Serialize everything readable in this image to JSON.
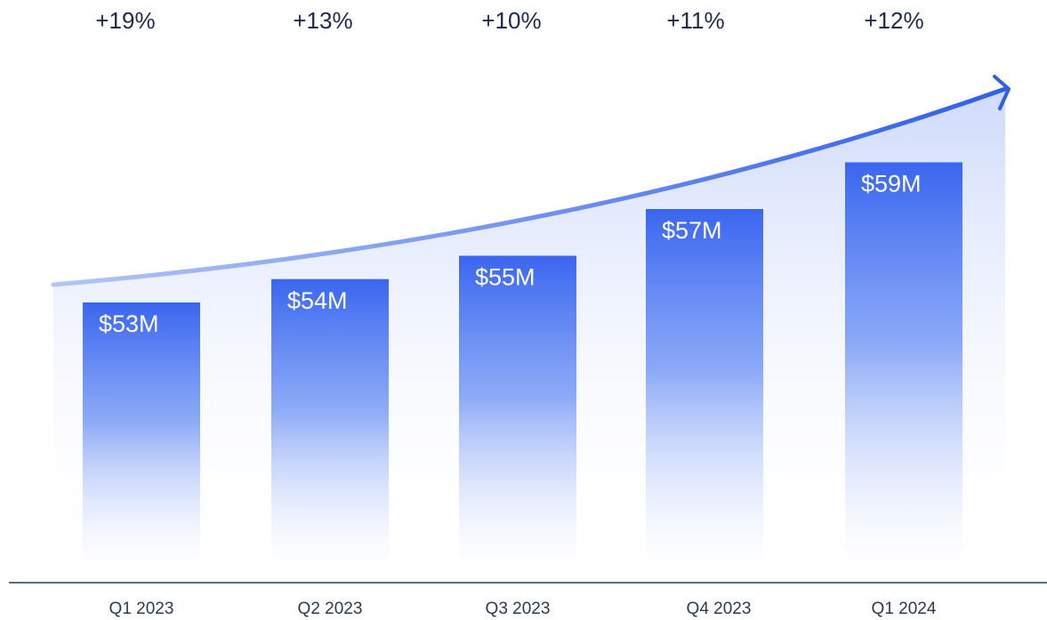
{
  "chart_data": {
    "type": "bar",
    "categories": [
      "Q1 2023",
      "Q2 2023",
      "Q3 2023",
      "Q4 2023",
      "Q1 2024"
    ],
    "values": [
      53,
      54,
      55,
      57,
      59
    ],
    "value_labels": [
      "$53M",
      "$54M",
      "$55M",
      "$57M",
      "$59M"
    ],
    "growth": {
      "values": [
        19,
        13,
        10,
        11,
        12
      ],
      "value_labels": [
        "+19%",
        "+13%",
        "+10%",
        "+11%",
        "+12%"
      ]
    },
    "color": "#3a66f0",
    "ylim": [
      41,
      61
    ]
  }
}
